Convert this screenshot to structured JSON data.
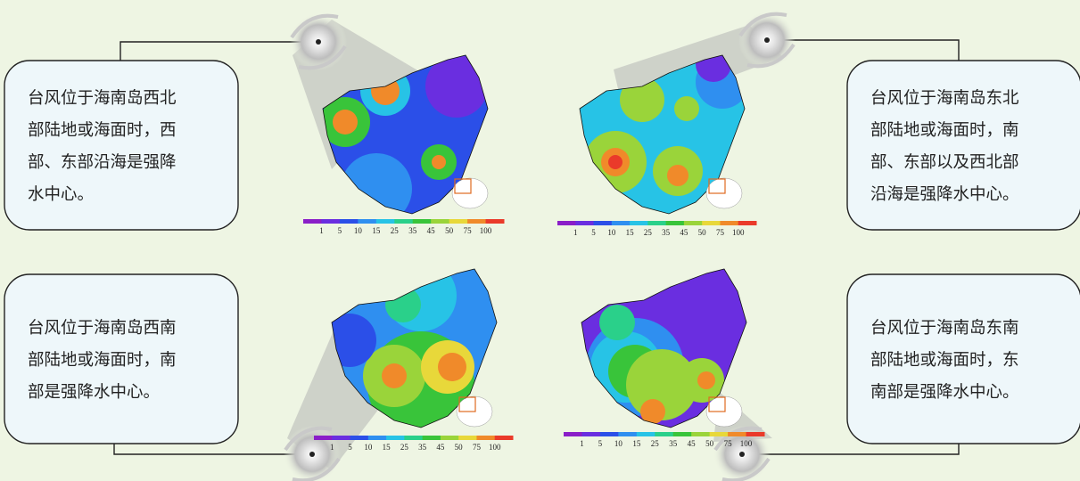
{
  "panels": [
    {
      "lines": [
        "台风位于海南岛西北",
        "部陆地或海面时，西",
        "部、东部沿海是强降",
        "水中心。"
      ],
      "scale": [
        1,
        5,
        10,
        15,
        25,
        35,
        45,
        50,
        75,
        100
      ]
    },
    {
      "lines": [
        "台风位于海南岛东北",
        "部陆地或海面时，南",
        "部、东部以及西北部",
        "沿海是强降水中心。"
      ],
      "scale": [
        1,
        5,
        10,
        15,
        25,
        35,
        45,
        50,
        75,
        100
      ]
    },
    {
      "lines": [
        "台风位于海南岛西南",
        "部陆地或海面时，南",
        "部是强降水中心。"
      ],
      "scale": [
        1,
        5,
        10,
        15,
        25,
        35,
        45,
        50,
        75,
        100
      ]
    },
    {
      "lines": [
        "台风位于海南岛东南",
        "部陆地或海面时，东",
        "南部是强降水中心。"
      ],
      "scale": [
        1,
        5,
        10,
        15,
        25,
        35,
        45,
        50,
        75,
        100
      ]
    }
  ]
}
